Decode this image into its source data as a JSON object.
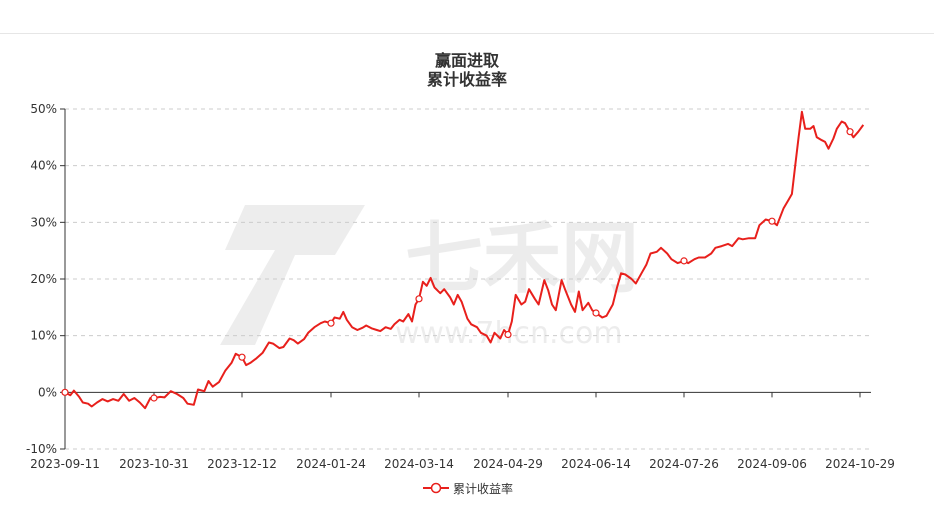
{
  "chart_data": {
    "type": "line",
    "title": "赢面进取",
    "subtitle": "累计收益率",
    "watermark": "七禾网",
    "watermark_url": "www.7hcn.com",
    "y_ticks": [
      "50%",
      "40%",
      "30%",
      "20%",
      "10%",
      "0%",
      "-10%"
    ],
    "y_tick_values": [
      50,
      40,
      30,
      20,
      10,
      0,
      -10
    ],
    "ylim": [
      -10,
      50
    ],
    "x_ticks": [
      "2023-09-11",
      "2023-10-31",
      "2023-12-12",
      "2024-01-24",
      "2024-03-14",
      "2024-04-29",
      "2024-06-14",
      "2024-07-26",
      "2024-09-06",
      "2024-10-29"
    ],
    "grid": true,
    "legend_position": "bottom-center",
    "series": [
      {
        "name": "累计收益率",
        "color": "#e8201c",
        "points": [
          [
            "2023-09-11",
            0.0
          ],
          [
            "2023-09-14",
            -0.5
          ],
          [
            "2023-09-16",
            0.3
          ],
          [
            "2023-09-19",
            -0.8
          ],
          [
            "2023-09-21",
            -1.8
          ],
          [
            "2023-09-24",
            -2.0
          ],
          [
            "2023-09-26",
            -2.5
          ],
          [
            "2023-09-29",
            -1.8
          ],
          [
            "2023-10-02",
            -1.2
          ],
          [
            "2023-10-05",
            -1.6
          ],
          [
            "2023-10-08",
            -1.2
          ],
          [
            "2023-10-11",
            -1.5
          ],
          [
            "2023-10-14",
            -0.3
          ],
          [
            "2023-10-17",
            -1.5
          ],
          [
            "2023-10-20",
            -1.0
          ],
          [
            "2023-10-23",
            -1.8
          ],
          [
            "2023-10-26",
            -2.8
          ],
          [
            "2023-10-29",
            -1.0
          ],
          [
            "2023-10-31",
            -1.0
          ],
          [
            "2023-11-03",
            -0.8
          ],
          [
            "2023-11-05",
            -0.9
          ],
          [
            "2023-11-08",
            0.2
          ],
          [
            "2023-11-11",
            -0.3
          ],
          [
            "2023-11-14",
            -1.0
          ],
          [
            "2023-11-16",
            -2.0
          ],
          [
            "2023-11-19",
            -2.2
          ],
          [
            "2023-11-21",
            0.5
          ],
          [
            "2023-11-24",
            0.2
          ],
          [
            "2023-11-26",
            2.0
          ],
          [
            "2023-11-28",
            1.0
          ],
          [
            "2023-12-01",
            1.8
          ],
          [
            "2023-12-04",
            3.8
          ],
          [
            "2023-12-07",
            5.2
          ],
          [
            "2023-12-09",
            6.8
          ],
          [
            "2023-12-12",
            6.2
          ],
          [
            "2023-12-14",
            4.8
          ],
          [
            "2023-12-16",
            5.2
          ],
          [
            "2023-12-19",
            6.0
          ],
          [
            "2023-12-22",
            7.0
          ],
          [
            "2023-12-25",
            8.8
          ],
          [
            "2023-12-27",
            8.6
          ],
          [
            "2023-12-30",
            7.8
          ],
          [
            "2024-01-01",
            8.0
          ],
          [
            "2024-01-04",
            9.5
          ],
          [
            "2024-01-06",
            9.2
          ],
          [
            "2024-01-08",
            8.6
          ],
          [
            "2024-01-11",
            9.4
          ],
          [
            "2024-01-13",
            10.5
          ],
          [
            "2024-01-16",
            11.5
          ],
          [
            "2024-01-19",
            12.2
          ],
          [
            "2024-01-21",
            12.5
          ],
          [
            "2024-01-24",
            12.2
          ],
          [
            "2024-01-26",
            13.2
          ],
          [
            "2024-01-29",
            13.0
          ],
          [
            "2024-01-31",
            14.2
          ],
          [
            "2024-02-02",
            12.8
          ],
          [
            "2024-02-05",
            11.5
          ],
          [
            "2024-02-08",
            11.0
          ],
          [
            "2024-02-11",
            11.4
          ],
          [
            "2024-02-13",
            11.8
          ],
          [
            "2024-02-16",
            11.3
          ],
          [
            "2024-02-19",
            11.0
          ],
          [
            "2024-02-21",
            10.8
          ],
          [
            "2024-02-24",
            11.5
          ],
          [
            "2024-02-27",
            11.2
          ],
          [
            "2024-02-29",
            12.0
          ],
          [
            "2024-03-03",
            12.8
          ],
          [
            "2024-03-05",
            12.5
          ],
          [
            "2024-03-08",
            13.8
          ],
          [
            "2024-03-10",
            12.5
          ],
          [
            "2024-03-12",
            15.5
          ],
          [
            "2024-03-14",
            16.5
          ],
          [
            "2024-03-16",
            19.5
          ],
          [
            "2024-03-18",
            18.8
          ],
          [
            "2024-03-20",
            20.2
          ],
          [
            "2024-03-22",
            18.5
          ],
          [
            "2024-03-25",
            17.5
          ],
          [
            "2024-03-27",
            18.2
          ],
          [
            "2024-03-30",
            16.8
          ],
          [
            "2024-04-01",
            15.5
          ],
          [
            "2024-04-03",
            17.2
          ],
          [
            "2024-04-05",
            16.0
          ],
          [
            "2024-04-08",
            13.0
          ],
          [
            "2024-04-10",
            12.0
          ],
          [
            "2024-04-13",
            11.5
          ],
          [
            "2024-04-15",
            10.5
          ],
          [
            "2024-04-18",
            10.0
          ],
          [
            "2024-04-20",
            8.8
          ],
          [
            "2024-04-22",
            10.5
          ],
          [
            "2024-04-25",
            9.5
          ],
          [
            "2024-04-27",
            11.0
          ],
          [
            "2024-04-29",
            10.2
          ],
          [
            "2024-05-01",
            12.5
          ],
          [
            "2024-05-03",
            17.2
          ],
          [
            "2024-05-06",
            15.5
          ],
          [
            "2024-05-08",
            16.0
          ],
          [
            "2024-05-10",
            18.2
          ],
          [
            "2024-05-13",
            16.5
          ],
          [
            "2024-05-15",
            15.5
          ],
          [
            "2024-05-18",
            19.8
          ],
          [
            "2024-05-20",
            18.0
          ],
          [
            "2024-05-22",
            15.5
          ],
          [
            "2024-05-24",
            14.5
          ],
          [
            "2024-05-27",
            19.8
          ],
          [
            "2024-05-29",
            18.0
          ],
          [
            "2024-06-01",
            15.5
          ],
          [
            "2024-06-03",
            14.2
          ],
          [
            "2024-06-05",
            17.8
          ],
          [
            "2024-06-07",
            14.5
          ],
          [
            "2024-06-10",
            15.8
          ],
          [
            "2024-06-12",
            14.5
          ],
          [
            "2024-06-14",
            14.0
          ],
          [
            "2024-06-17",
            13.2
          ],
          [
            "2024-06-19",
            13.5
          ],
          [
            "2024-06-22",
            15.5
          ],
          [
            "2024-06-24",
            18.5
          ],
          [
            "2024-06-26",
            21.0
          ],
          [
            "2024-06-28",
            20.8
          ],
          [
            "2024-07-01",
            20.0
          ],
          [
            "2024-07-03",
            19.2
          ],
          [
            "2024-07-06",
            21.2
          ],
          [
            "2024-07-08",
            22.5
          ],
          [
            "2024-07-10",
            24.5
          ],
          [
            "2024-07-13",
            24.8
          ],
          [
            "2024-07-15",
            25.5
          ],
          [
            "2024-07-18",
            24.5
          ],
          [
            "2024-07-20",
            23.5
          ],
          [
            "2024-07-23",
            22.8
          ],
          [
            "2024-07-26",
            23.2
          ],
          [
            "2024-07-28",
            22.8
          ],
          [
            "2024-07-31",
            23.5
          ],
          [
            "2024-08-02",
            23.8
          ],
          [
            "2024-08-05",
            23.8
          ],
          [
            "2024-08-08",
            24.5
          ],
          [
            "2024-08-10",
            25.5
          ],
          [
            "2024-08-13",
            25.8
          ],
          [
            "2024-08-16",
            26.2
          ],
          [
            "2024-08-18",
            25.8
          ],
          [
            "2024-08-21",
            27.2
          ],
          [
            "2024-08-23",
            27.0
          ],
          [
            "2024-08-26",
            27.2
          ],
          [
            "2024-08-29",
            27.2
          ],
          [
            "2024-08-31",
            29.5
          ],
          [
            "2024-09-03",
            30.5
          ],
          [
            "2024-09-06",
            30.2
          ],
          [
            "2024-09-09",
            29.5
          ],
          [
            "2024-09-11",
            31.0
          ],
          [
            "2024-09-13",
            32.5
          ],
          [
            "2024-09-16",
            34.0
          ],
          [
            "2024-09-18",
            35.0
          ],
          [
            "2024-09-20",
            40.0
          ],
          [
            "2024-09-22",
            45.0
          ],
          [
            "2024-09-24",
            49.5
          ],
          [
            "2024-09-26",
            46.5
          ],
          [
            "2024-09-29",
            46.5
          ],
          [
            "2024-10-01",
            47.0
          ],
          [
            "2024-10-03",
            45.0
          ],
          [
            "2024-10-06",
            44.5
          ],
          [
            "2024-10-08",
            44.2
          ],
          [
            "2024-10-10",
            43.0
          ],
          [
            "2024-10-13",
            44.8
          ],
          [
            "2024-10-15",
            46.5
          ],
          [
            "2024-10-18",
            47.8
          ],
          [
            "2024-10-20",
            47.5
          ],
          [
            "2024-10-23",
            46.0
          ],
          [
            "2024-10-25",
            45.0
          ],
          [
            "2024-10-28",
            46.0
          ],
          [
            "2024-10-31",
            47.2
          ]
        ],
        "markers": [
          [
            "2023-09-11",
            0.0
          ],
          [
            "2023-10-31",
            -1.0
          ],
          [
            "2023-12-12",
            6.2
          ],
          [
            "2024-01-24",
            12.2
          ],
          [
            "2024-03-14",
            16.5
          ],
          [
            "2024-04-29",
            10.2
          ],
          [
            "2024-06-14",
            14.0
          ],
          [
            "2024-07-26",
            23.2
          ],
          [
            "2024-09-06",
            30.2
          ],
          [
            "2024-10-23",
            46.0
          ]
        ]
      }
    ]
  }
}
